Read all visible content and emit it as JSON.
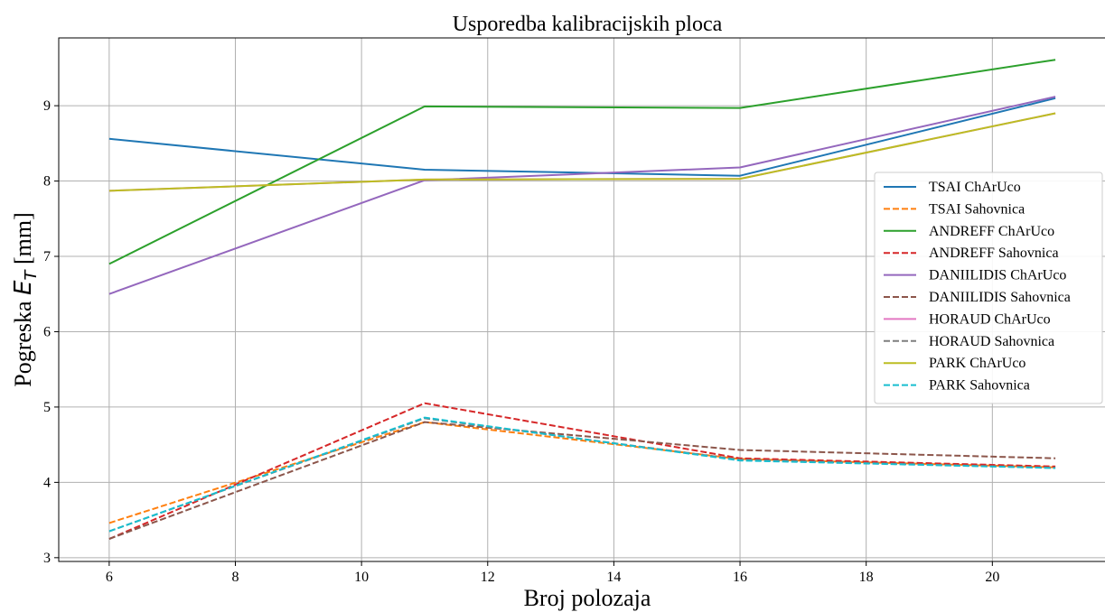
{
  "chart_data": {
    "type": "line",
    "title": "Usporedba kalibracijskih ploca",
    "xlabel": "Broj polozaja",
    "ylabel_prefix": "Pogreska ",
    "ylabel_symbol": "E",
    "ylabel_subscript": "T",
    "ylabel_unit": " [mm]",
    "xlim": [
      5.2,
      21.8
    ],
    "ylim": [
      2.95,
      9.9
    ],
    "xticks": [
      6,
      8,
      10,
      12,
      14,
      16,
      18,
      20
    ],
    "yticks": [
      3,
      4,
      5,
      6,
      7,
      8,
      9
    ],
    "grid": true,
    "legend_position": "right",
    "x": [
      6,
      11,
      16,
      21
    ],
    "series": [
      {
        "name": "TSAI ChArUco",
        "color": "#1f77b4",
        "dash": "solid",
        "values": [
          8.56,
          8.15,
          8.07,
          9.1
        ]
      },
      {
        "name": "TSAI Sahovnica",
        "color": "#ff7f0e",
        "dash": "dashed",
        "values": [
          3.46,
          4.8,
          4.31,
          4.2
        ]
      },
      {
        "name": "ANDREFF ChArUco",
        "color": "#2ca02c",
        "dash": "solid",
        "values": [
          6.9,
          8.99,
          8.97,
          9.61
        ]
      },
      {
        "name": "ANDREFF Sahovnica",
        "color": "#d62728",
        "dash": "dashed",
        "values": [
          3.25,
          5.05,
          4.32,
          4.21
        ]
      },
      {
        "name": "DANIILIDIS ChArUco",
        "color": "#9467bd",
        "dash": "solid",
        "values": [
          6.5,
          8.01,
          8.18,
          9.12
        ]
      },
      {
        "name": "DANIILIDIS Sahovnica",
        "color": "#8c564b",
        "dash": "dashed",
        "values": [
          3.25,
          4.8,
          4.43,
          4.32
        ]
      },
      {
        "name": "HORAUD ChArUco",
        "color": "#e377c2",
        "dash": "solid",
        "values": [
          7.87,
          8.02,
          8.03,
          8.9
        ]
      },
      {
        "name": "HORAUD Sahovnica",
        "color": "#7f7f7f",
        "dash": "dashed",
        "values": [
          3.35,
          4.85,
          4.3,
          4.19
        ]
      },
      {
        "name": "PARK ChArUco",
        "color": "#bcbd22",
        "dash": "solid",
        "values": [
          7.87,
          8.02,
          8.03,
          8.9
        ]
      },
      {
        "name": "PARK Sahovnica",
        "color": "#17becf",
        "dash": "dashed",
        "values": [
          3.35,
          4.86,
          4.29,
          4.19
        ]
      }
    ]
  }
}
